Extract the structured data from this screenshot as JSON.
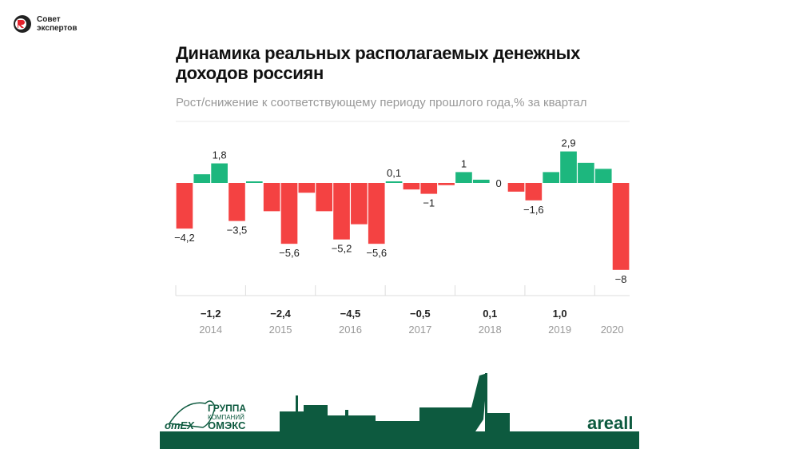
{
  "logo": {
    "line1": "Совет",
    "line2": "экспертов"
  },
  "chart_data": {
    "type": "bar",
    "title": "Динамика реальных располагаемых денежных доходов россиян",
    "subtitle": "Рост/снижение к соответствующему периоду прошлого года,% за квартал",
    "years": [
      "2014",
      "2015",
      "2016",
      "2017",
      "2018",
      "2019",
      "2020"
    ],
    "year_totals": [
      "−1,2",
      "−2,4",
      "−4,5",
      "−0,5",
      "0,1",
      "1,0",
      ""
    ],
    "quarters_per_year": [
      4,
      4,
      4,
      4,
      4,
      4,
      2
    ],
    "values": [
      -4.2,
      0.8,
      1.8,
      -3.5,
      0.1,
      -2.6,
      -5.6,
      -0.9,
      -2.6,
      -5.2,
      -3.8,
      -5.6,
      0.1,
      -0.6,
      -1.0,
      -0.2,
      1.0,
      0.3,
      0.0,
      -0.8,
      -1.6,
      1.0,
      2.9,
      1.85,
      1.3,
      -8.0
    ],
    "data_labels": {
      "0": "−4,2",
      "2": "1,8",
      "3": "−3,5",
      "6": "−5,6",
      "9": "−5,2",
      "11": "−5,6",
      "12": "0,1",
      "14": "−1",
      "16": "1",
      "18": "0",
      "20": "−1,6",
      "22": "2,9",
      "25": "−8"
    },
    "colors": {
      "positive": "#1db77e",
      "negative": "#f44242"
    },
    "ylim": [
      -8.5,
      5.5
    ],
    "grid": false
  },
  "banner": {
    "company_line1": "ГРУППА",
    "company_line2": "КОМПАНИЙ",
    "company_line3": "ОМЭКС",
    "omex_mark": "omEX",
    "brand": "areall",
    "color": "#0d5a3f"
  }
}
